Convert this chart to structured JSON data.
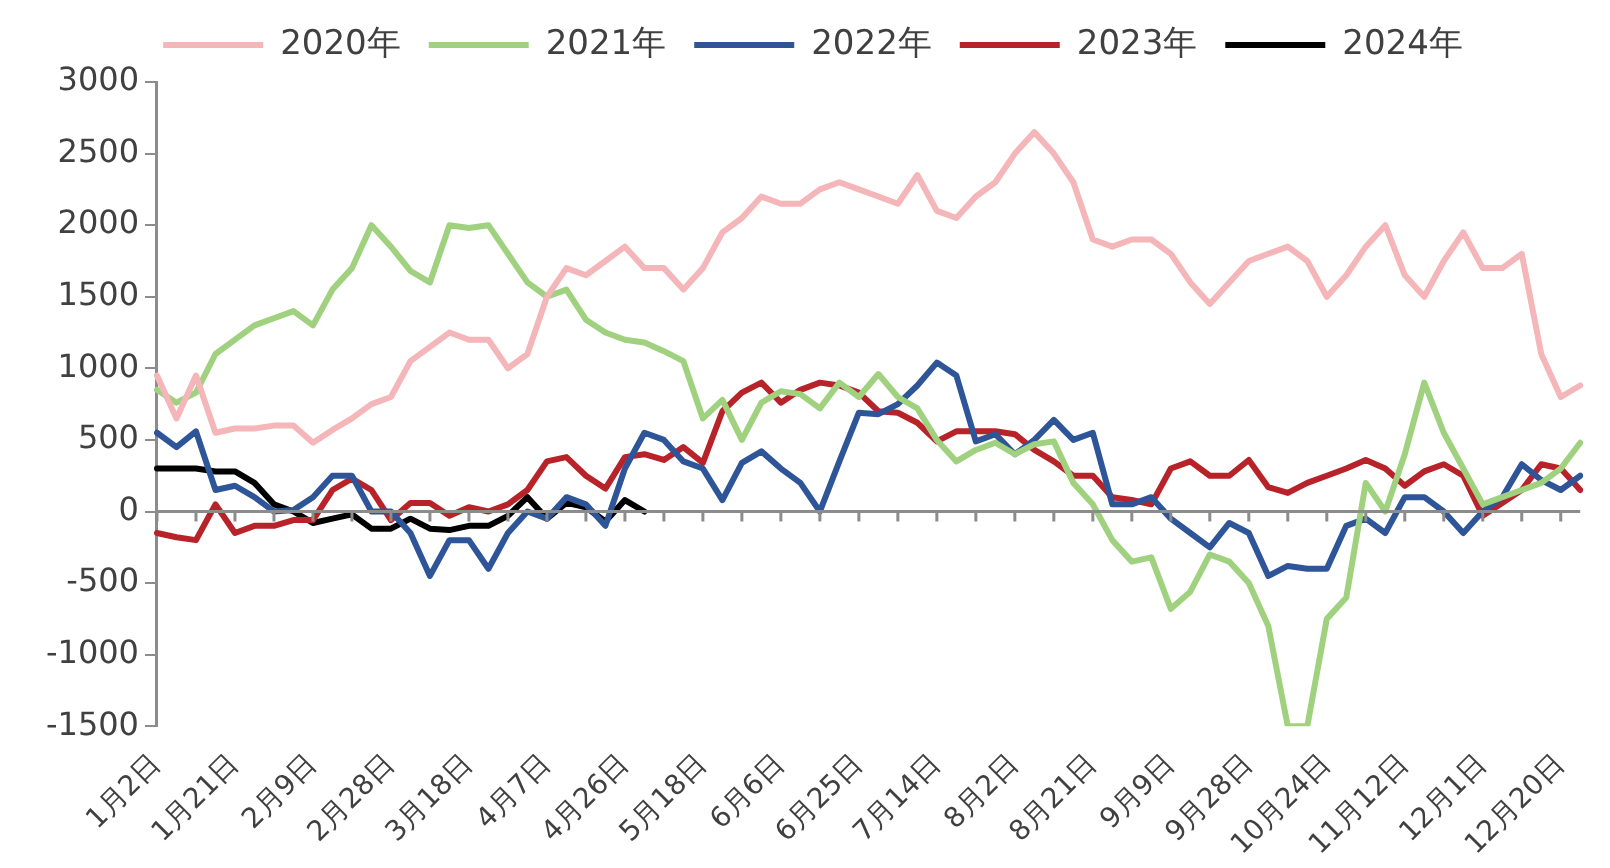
{
  "chart_data": {
    "type": "line",
    "legend": "top",
    "marker": "none",
    "line_style": "solid",
    "categories": [
      "1月2日",
      null,
      null,
      null,
      "1月21日",
      null,
      null,
      null,
      "2月9日",
      null,
      null,
      null,
      "2月28日",
      null,
      null,
      null,
      "3月18日",
      null,
      null,
      null,
      "4月7日",
      null,
      null,
      null,
      "4月26日",
      null,
      null,
      null,
      "5月18日",
      null,
      null,
      null,
      "6月6日",
      null,
      null,
      null,
      "6月25日",
      null,
      null,
      null,
      "7月14日",
      null,
      null,
      null,
      "8月2日",
      null,
      null,
      null,
      "8月21日",
      null,
      null,
      null,
      "9月9日",
      null,
      null,
      null,
      "9月28日",
      null,
      null,
      null,
      "10月24日",
      null,
      null,
      null,
      "11月12日",
      null,
      null,
      null,
      "12月1日",
      null,
      null,
      null,
      "12月20日",
      null
    ],
    "ylim": [
      -1500,
      3000
    ],
    "yticks": [
      -1500,
      -1000,
      -500,
      0,
      500,
      1000,
      1500,
      2000,
      2500,
      3000
    ],
    "series": [
      {
        "name": "2020年",
        "color": "#f4b6b8",
        "values": [
          950,
          650,
          950,
          550,
          580,
          580,
          600,
          600,
          480,
          570,
          650,
          750,
          800,
          1050,
          1150,
          1250,
          1200,
          1200,
          1000,
          1100,
          1500,
          1700,
          1650,
          1750,
          1850,
          1700,
          1700,
          1550,
          1700,
          1950,
          2050,
          2200,
          2150,
          2150,
          2250,
          2300,
          2250,
          2200,
          2150,
          2350,
          2100,
          2050,
          2200,
          2300,
          2500,
          2650,
          2500,
          2300,
          1900,
          1850,
          1900,
          1900,
          1800,
          1600,
          1450,
          1600,
          1750,
          1800,
          1850,
          1750,
          1500,
          1650,
          1850,
          2000,
          1650,
          1500,
          1750,
          1950,
          1700,
          1700,
          1800,
          1100,
          800,
          880
        ]
      },
      {
        "name": "2021年",
        "color": "#9fd17f",
        "values": [
          850,
          760,
          830,
          1100,
          1200,
          1300,
          1350,
          1400,
          1300,
          1550,
          1700,
          2000,
          1850,
          1680,
          1600,
          2000,
          1980,
          2000,
          1800,
          1600,
          1500,
          1550,
          1340,
          1250,
          1200,
          1180,
          1120,
          1050,
          650,
          780,
          500,
          760,
          840,
          820,
          720,
          900,
          800,
          960,
          800,
          720,
          500,
          350,
          430,
          480,
          400,
          470,
          490,
          200,
          50,
          -200,
          -350,
          -320,
          -680,
          -560,
          -300,
          -350,
          -500,
          -800,
          -1500,
          -1500,
          -750,
          -600,
          200,
          0,
          400,
          900,
          550,
          300,
          50,
          100,
          150,
          200,
          300,
          480
        ]
      },
      {
        "name": "2022年",
        "color": "#2e5597",
        "values": [
          550,
          450,
          560,
          150,
          180,
          100,
          0,
          10,
          100,
          250,
          250,
          0,
          0,
          -150,
          -450,
          -200,
          -200,
          -400,
          -150,
          0,
          -50,
          100,
          50,
          -100,
          300,
          550,
          500,
          350,
          300,
          80,
          340,
          420,
          300,
          200,
          0,
          350,
          690,
          680,
          750,
          880,
          1040,
          950,
          490,
          540,
          400,
          500,
          640,
          500,
          550,
          50,
          50,
          100,
          -50,
          -150,
          -250,
          -80,
          -150,
          -450,
          -380,
          -400,
          -400,
          -100,
          -50,
          -150,
          100,
          100,
          0,
          -150,
          0,
          100,
          330,
          220,
          150,
          250
        ]
      },
      {
        "name": "2023年",
        "color": "#b8232a",
        "values": [
          -150,
          -180,
          -200,
          50,
          -150,
          -100,
          -100,
          -60,
          -60,
          150,
          230,
          150,
          -60,
          60,
          60,
          -30,
          30,
          0,
          50,
          150,
          350,
          380,
          250,
          160,
          380,
          400,
          360,
          450,
          340,
          700,
          830,
          900,
          760,
          850,
          900,
          880,
          830,
          700,
          690,
          620,
          490,
          560,
          560,
          560,
          540,
          430,
          350,
          250,
          250,
          100,
          80,
          50,
          300,
          350,
          250,
          250,
          360,
          170,
          130,
          200,
          250,
          300,
          360,
          300,
          180,
          280,
          330,
          250,
          -30,
          60,
          150,
          330,
          300,
          150
        ]
      },
      {
        "name": "2024年",
        "color": "#000000",
        "values": [
          300,
          300,
          300,
          280,
          280,
          200,
          50,
          0,
          -80,
          -50,
          -20,
          -120,
          -120,
          -50,
          -120,
          -130,
          -100,
          -100,
          -30,
          100,
          -50,
          60,
          30,
          -70,
          80,
          0,
          null,
          null,
          null,
          null,
          null,
          null,
          null,
          null,
          null,
          null,
          null,
          null,
          null,
          null,
          null,
          null,
          null,
          null,
          null,
          null,
          null,
          null,
          null,
          null,
          null,
          null,
          null,
          null,
          null,
          null,
          null,
          null,
          null,
          null,
          null,
          null,
          null,
          null,
          null,
          null,
          null,
          null,
          null,
          null,
          null,
          null,
          null,
          null
        ]
      }
    ]
  }
}
